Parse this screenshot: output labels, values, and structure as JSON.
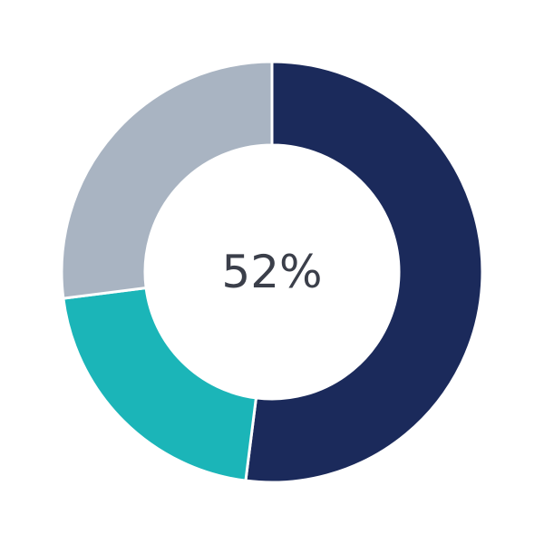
{
  "chart_data": {
    "type": "pie",
    "style": "donut",
    "values": [
      52,
      21,
      27
    ],
    "unit": "%",
    "colors": [
      "#1b2a5b",
      "#1bb5b8",
      "#a9b4c2"
    ],
    "start": "top",
    "direction": "clockwise",
    "center_label": "52%",
    "legend": "none"
  }
}
